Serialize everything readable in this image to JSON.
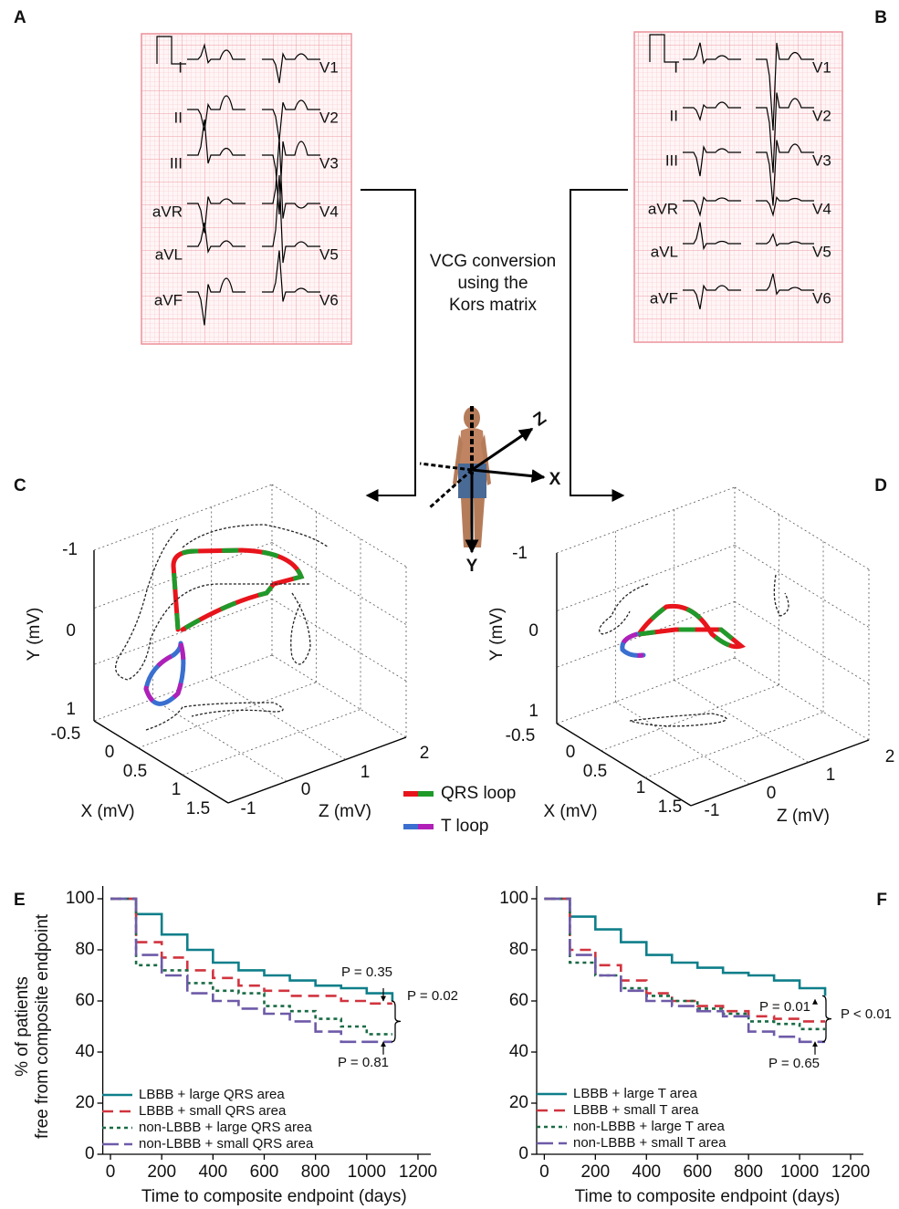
{
  "panel_labels": [
    "A",
    "B",
    "C",
    "D",
    "E",
    "F"
  ],
  "ecg": [
    {
      "limb_leads": [
        "I",
        "II",
        "III",
        "aVR",
        "aVL",
        "aVF"
      ],
      "chest_leads": [
        "V1",
        "V2",
        "V3",
        "V4",
        "V5",
        "V6"
      ]
    },
    {
      "limb_leads": [
        "I",
        "II",
        "III",
        "aVR",
        "aVL",
        "aVF"
      ],
      "chest_leads": [
        "V1",
        "V2",
        "V3",
        "V4",
        "V5",
        "V6"
      ]
    }
  ],
  "conversion_text": [
    "VCG conversion",
    "using the",
    "Kors matrix"
  ],
  "body_axes": [
    "X",
    "Y",
    "Z"
  ],
  "vcg": [
    {
      "y_ticks": [
        "-1",
        "0",
        "1"
      ],
      "x_ticks": [
        "-0.5",
        "0",
        "0.5",
        "1",
        "1.5"
      ],
      "z_ticks": [
        "-1",
        "0",
        "1",
        "2"
      ],
      "y_label": "Y (mV)",
      "x_label": "X (mV)",
      "z_label": "Z (mV)"
    },
    {
      "y_ticks": [
        "-1",
        "0",
        "1"
      ],
      "x_ticks": [
        "-0.5",
        "0",
        "0.5",
        "1",
        "1.5"
      ],
      "z_ticks": [
        "-1",
        "0",
        "1",
        "2"
      ],
      "y_label": "Y (mV)",
      "x_label": "X (mV)",
      "z_label": "Z (mV)"
    }
  ],
  "loop_legend": [
    "QRS loop",
    "T loop"
  ],
  "chart_data": [
    {
      "type": "line",
      "step": true,
      "ylabel": [
        "% of patients",
        "free from composite endpoint"
      ],
      "xlabel": "Time to composite endpoint (days)",
      "x": [
        0,
        100,
        200,
        300,
        400,
        500,
        600,
        700,
        800,
        900,
        1000,
        1100
      ],
      "series": [
        {
          "name": "LBBB + large QRS area",
          "color": "#0e7f8a",
          "values": [
            100,
            94,
            86,
            80,
            75,
            72,
            70,
            68,
            66,
            65,
            63,
            60
          ]
        },
        {
          "name": "LBBB + small QRS area",
          "color": "#d1343f",
          "values": [
            100,
            83,
            77,
            72,
            69,
            66,
            64,
            62,
            62,
            60,
            59,
            59
          ]
        },
        {
          "name": "non-LBBB + large QRS area",
          "color": "#1a6b45",
          "values": [
            100,
            74,
            72,
            67,
            64,
            63,
            58,
            56,
            53,
            50,
            47,
            47
          ]
        },
        {
          "name": "non-LBBB + small QRS area",
          "color": "#6e5aa8",
          "values": [
            100,
            78,
            70,
            63,
            60,
            57,
            55,
            52,
            48,
            44,
            44,
            44
          ]
        }
      ],
      "xlim": [
        -30,
        1250
      ],
      "ylim": [
        0,
        105
      ],
      "xticks": [
        0,
        200,
        400,
        600,
        800,
        1000,
        1200
      ],
      "yticks": [
        0,
        20,
        40,
        60,
        80,
        100
      ],
      "legend": "lower left",
      "annotations": [
        "P = 0.35",
        "P = 0.02",
        "P = 0.81"
      ]
    },
    {
      "type": "line",
      "step": true,
      "xlabel": "Time to composite endpoint (days)",
      "x": [
        0,
        100,
        200,
        300,
        400,
        500,
        600,
        700,
        800,
        900,
        1000,
        1100
      ],
      "series": [
        {
          "name": "LBBB + large T area",
          "color": "#0e7f8a",
          "values": [
            100,
            93,
            88,
            83,
            78,
            75,
            73,
            71,
            70,
            68,
            65,
            62
          ]
        },
        {
          "name": "LBBB + small T area",
          "color": "#d1343f",
          "values": [
            100,
            80,
            74,
            68,
            63,
            60,
            58,
            56,
            54,
            53,
            52,
            52
          ]
        },
        {
          "name": "non-LBBB + large T area",
          "color": "#1a6b45",
          "values": [
            100,
            75,
            70,
            65,
            62,
            60,
            57,
            55,
            52,
            51,
            49,
            49
          ]
        },
        {
          "name": "non-LBBB + small T area",
          "color": "#6e5aa8",
          "values": [
            100,
            78,
            70,
            64,
            60,
            58,
            56,
            54,
            48,
            46,
            44,
            44
          ]
        }
      ],
      "xlim": [
        -30,
        1250
      ],
      "ylim": [
        0,
        105
      ],
      "xticks": [
        0,
        200,
        400,
        600,
        800,
        1000,
        1200
      ],
      "yticks": [
        0,
        20,
        40,
        60,
        80,
        100
      ],
      "legend": "lower left",
      "annotations": [
        "P = 0.01",
        "P < 0.01",
        "P = 0.65"
      ]
    }
  ]
}
